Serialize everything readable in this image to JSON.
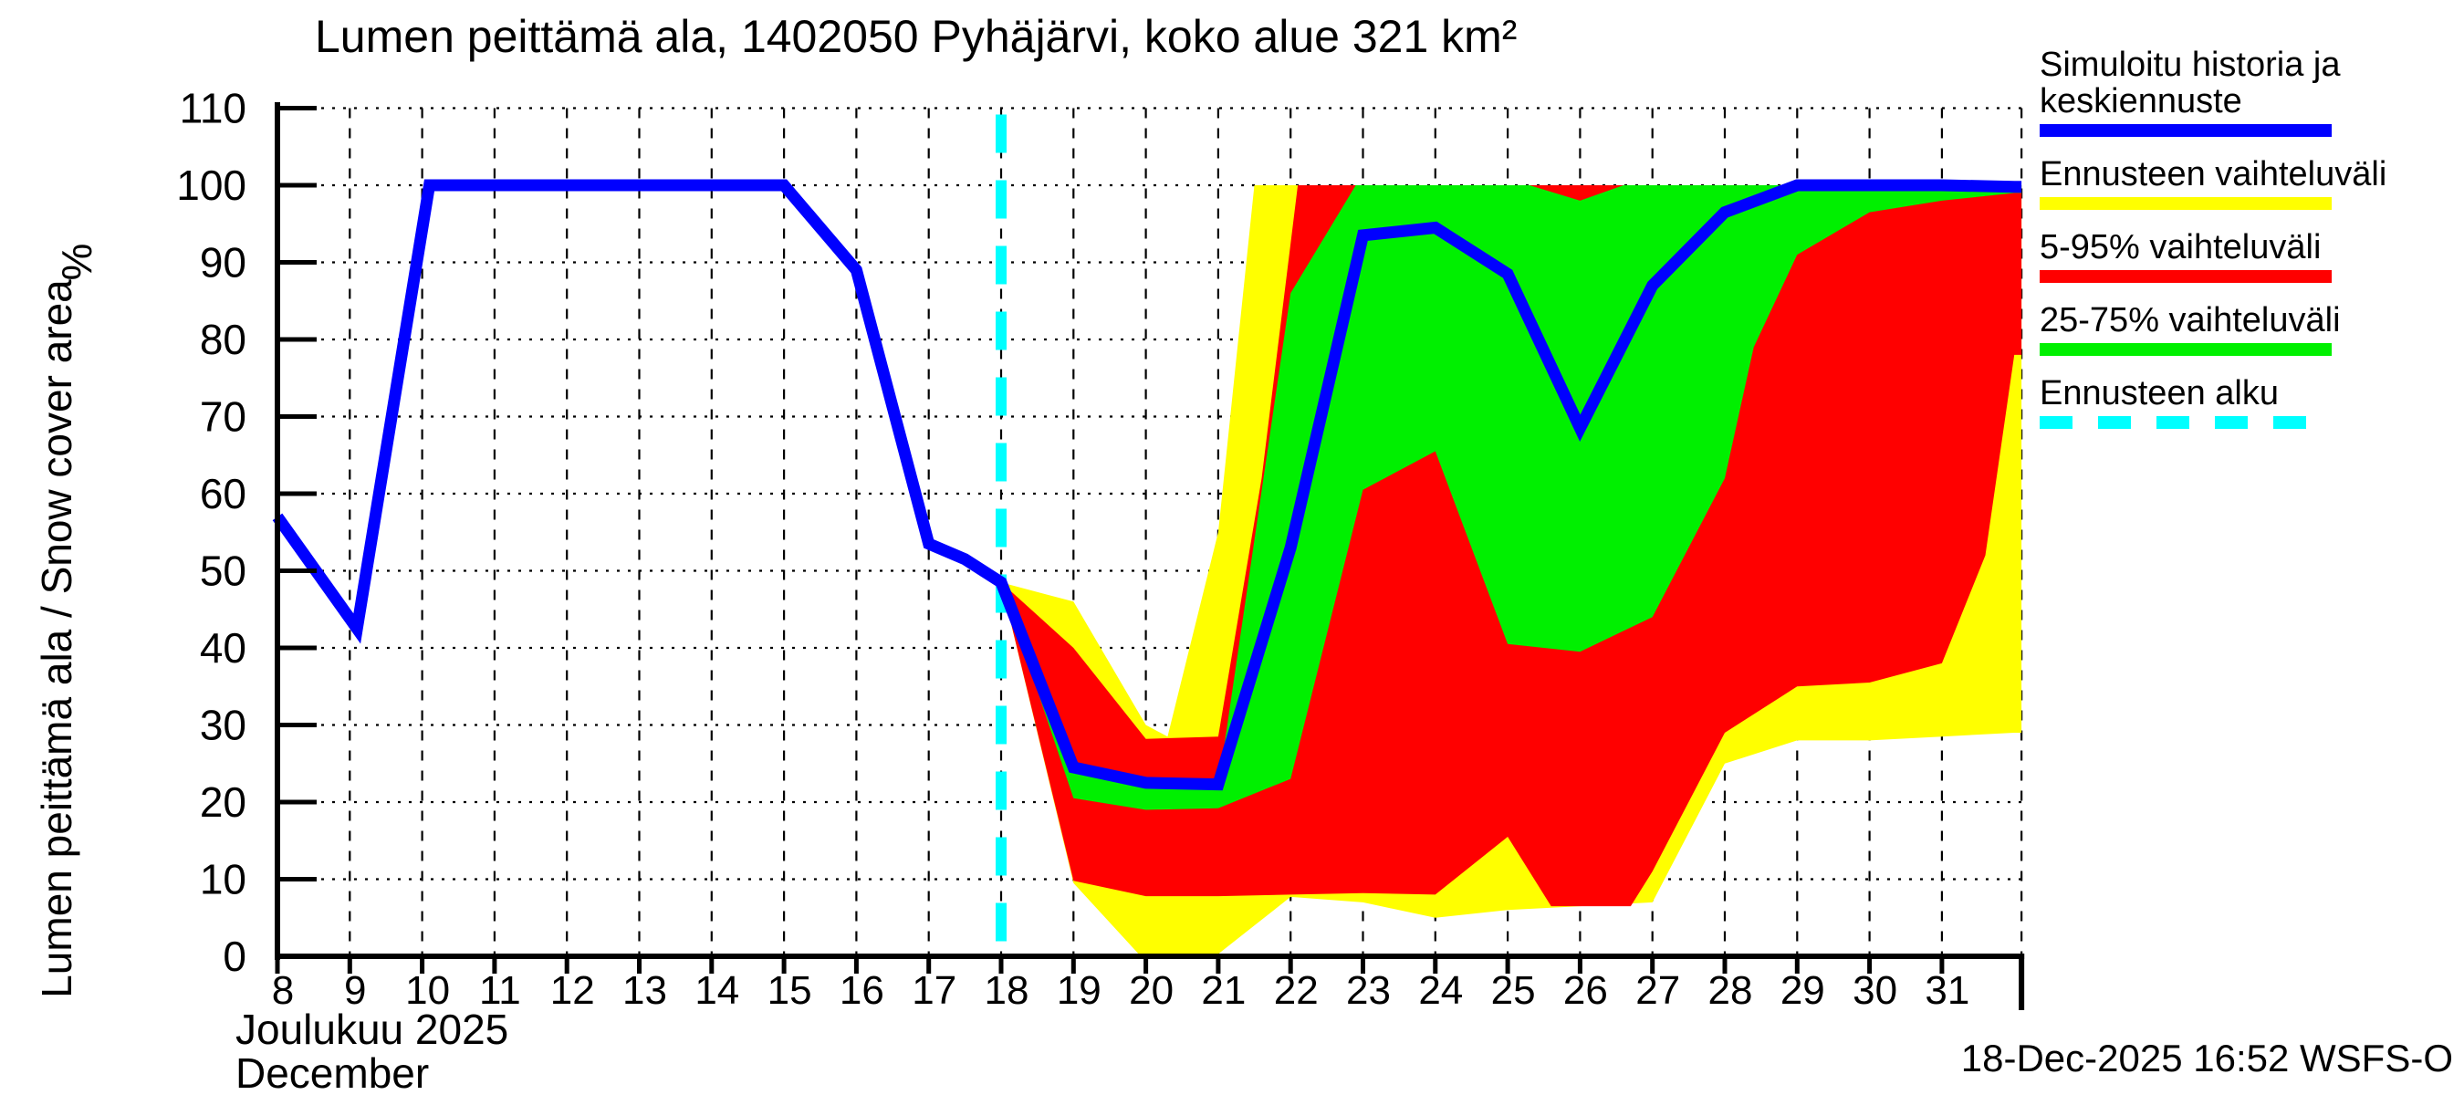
{
  "title": "Lumen peittämä ala, 1402050 Pyhäjärvi, koko alue 321 km²",
  "y_axis": {
    "label": "Lumen peittämä ala / Snow cover area",
    "unit": "%"
  },
  "x_axis": {
    "month_label": "Joulukuu 2025",
    "month_label_en": "December"
  },
  "footer": {
    "generated": "18-Dec-2025 16:52 WSFS-O"
  },
  "colors": {
    "mean_forecast": "#0000FF",
    "forecast_range": "#FFFF00",
    "range_5_95": "#FF0000",
    "range_25_75": "#00F000",
    "forecast_start": "#00FFFF",
    "axis": "#000000"
  },
  "legend": [
    {
      "label": "Simuloitu historia ja\nkeskiennuste",
      "color": "#0000FF",
      "dashed": false
    },
    {
      "label": "Ennusteen vaihteluväli",
      "color": "#FFFF00",
      "dashed": false
    },
    {
      "label": "5-95% vaihteluväli",
      "color": "#FF0000",
      "dashed": false
    },
    {
      "label": "25-75% vaihteluväli",
      "color": "#00F000",
      "dashed": false
    },
    {
      "label": "Ennusteen alku",
      "color": "#00FFFF",
      "dashed": true
    }
  ],
  "chart_data": {
    "type": "area",
    "title": "Lumen peittämä ala, 1402050 Pyhäjärvi, koko alue 321 km²",
    "xlabel": "Joulukuu 2025 / December",
    "ylabel": "Lumen peittämä ala / Snow cover area",
    "unit": "%",
    "xlim": [
      8,
      32.1
    ],
    "ylim": [
      0,
      110
    ],
    "x_ticks": [
      8,
      9,
      10,
      11,
      12,
      13,
      14,
      15,
      16,
      17,
      18,
      19,
      20,
      21,
      22,
      23,
      24,
      25,
      26,
      27,
      28,
      29,
      30,
      31
    ],
    "y_ticks": [
      0,
      10,
      20,
      30,
      40,
      50,
      60,
      70,
      80,
      90,
      100,
      110
    ],
    "grid": true,
    "legend_position": "outside-right",
    "forecast_start_x": 18,
    "series": [
      {
        "name": "Ennusteen vaihteluväli",
        "type": "band",
        "color": "#FFFF00",
        "upper": [
          [
            18,
            48.5
          ],
          [
            19,
            46
          ],
          [
            20,
            30
          ],
          [
            20.3,
            28.5
          ],
          [
            21,
            55
          ],
          [
            21.5,
            100
          ],
          [
            32,
            100
          ]
        ],
        "lower": [
          [
            18,
            48.5
          ],
          [
            19,
            9.5
          ],
          [
            19.9,
            0.3
          ],
          [
            21,
            0.3
          ],
          [
            22,
            7.7
          ],
          [
            23,
            7
          ],
          [
            24,
            5
          ],
          [
            25,
            6
          ],
          [
            26,
            6.5
          ],
          [
            27,
            7
          ],
          [
            28,
            25
          ],
          [
            29,
            28
          ],
          [
            30,
            28
          ],
          [
            31,
            28.5
          ],
          [
            32,
            29
          ]
        ]
      },
      {
        "name": "5-95% vaihteluväli",
        "type": "band",
        "color": "#FF0000",
        "upper": [
          [
            18,
            48.5
          ],
          [
            19,
            40
          ],
          [
            20,
            28.2
          ],
          [
            21,
            28.5
          ],
          [
            21.6,
            62
          ],
          [
            22.1,
            100
          ],
          [
            32,
            100
          ]
        ],
        "lower": [
          [
            18,
            48.5
          ],
          [
            19,
            9.8
          ],
          [
            20,
            7.8
          ],
          [
            21,
            7.8
          ],
          [
            22,
            8
          ],
          [
            23,
            8.2
          ],
          [
            24,
            8
          ],
          [
            25,
            15.5
          ],
          [
            25.6,
            6.5
          ],
          [
            26.7,
            6.5
          ],
          [
            27,
            11
          ],
          [
            28,
            29
          ],
          [
            29,
            35
          ],
          [
            30,
            35.5
          ],
          [
            31,
            38
          ],
          [
            31.6,
            52
          ],
          [
            32,
            78
          ]
        ]
      },
      {
        "name": "25-75% vaihteluväli",
        "type": "band",
        "color": "#00F000",
        "upper": [
          [
            18,
            48.5
          ],
          [
            19,
            24
          ],
          [
            20,
            22
          ],
          [
            21,
            22
          ],
          [
            22,
            86
          ],
          [
            22.9,
            100
          ],
          [
            25.3,
            100
          ],
          [
            26,
            98
          ],
          [
            26.6,
            100
          ],
          [
            32,
            100
          ]
        ],
        "lower": [
          [
            18,
            48.5
          ],
          [
            19,
            20.5
          ],
          [
            20,
            19
          ],
          [
            21,
            19.2
          ],
          [
            22,
            23
          ],
          [
            23,
            60.5
          ],
          [
            24,
            65.5
          ],
          [
            25,
            40.5
          ],
          [
            26,
            39.5
          ],
          [
            27,
            44
          ],
          [
            28,
            62
          ],
          [
            28.4,
            79
          ],
          [
            29,
            91
          ],
          [
            30,
            96.5
          ],
          [
            31,
            98
          ],
          [
            32,
            99
          ]
        ]
      },
      {
        "name": "Ennusteen alku",
        "type": "vline",
        "color": "#00FFFF",
        "x": 18,
        "dashed": true
      },
      {
        "name": "Simuloitu historia ja keskiennuste",
        "type": "line",
        "color": "#0000FF",
        "points": [
          [
            8,
            57
          ],
          [
            9.1,
            42.5
          ],
          [
            10.1,
            100
          ],
          [
            15,
            100
          ],
          [
            16,
            89
          ],
          [
            17,
            53.5
          ],
          [
            17.5,
            51.5
          ],
          [
            18,
            48.5
          ],
          [
            19,
            24.5
          ],
          [
            20,
            22.5
          ],
          [
            21,
            22.3
          ],
          [
            22,
            53
          ],
          [
            23,
            93.5
          ],
          [
            24,
            94.5
          ],
          [
            25,
            88.5
          ],
          [
            26,
            68.5
          ],
          [
            27,
            87
          ],
          [
            28,
            96.5
          ],
          [
            29,
            100
          ],
          [
            31,
            100
          ],
          [
            32,
            99.8
          ]
        ]
      }
    ]
  }
}
